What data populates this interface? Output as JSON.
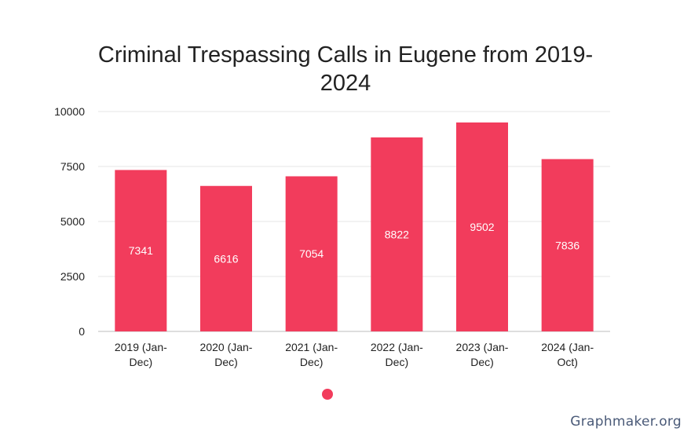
{
  "chart_data": {
    "type": "bar",
    "title_lines": [
      "Criminal Trespassing Calls in Eugene from 2019-",
      "2024"
    ],
    "categories": [
      [
        "2019 (Jan-",
        "Dec)"
      ],
      [
        "2020 (Jan-",
        "Dec)"
      ],
      [
        "2021 (Jan-",
        "Dec)"
      ],
      [
        "2022 (Jan-",
        "Dec)"
      ],
      [
        "2023 (Jan-",
        "Dec)"
      ],
      [
        "2024 (Jan-",
        "Oct)"
      ]
    ],
    "values": [
      7341,
      6616,
      7054,
      8822,
      9502,
      7836
    ],
    "data_labels": [
      "7341",
      "6616",
      "7054",
      "8822",
      "9502",
      "7836"
    ],
    "ylim": [
      0,
      10000
    ],
    "yticks": [
      0,
      2500,
      5000,
      7500,
      10000
    ],
    "ytick_labels": [
      "0",
      "2500",
      "5000",
      "7500",
      "10000"
    ],
    "grid": true,
    "legend": "bottom-center",
    "bar_color": "#f23c5c"
  },
  "watermark": "Graphmaker.org"
}
